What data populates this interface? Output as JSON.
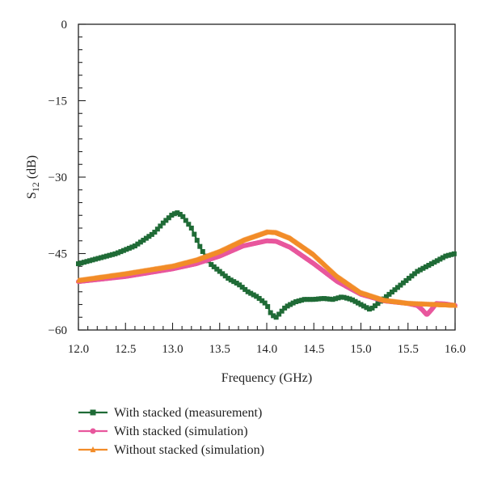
{
  "chart_data": {
    "type": "line",
    "xlabel": "Frequency (GHz)",
    "ylabel": {
      "main": "S",
      "sub": "12",
      "unit": " (dB)"
    },
    "xlim": [
      12.0,
      16.0
    ],
    "ylim": [
      -60,
      0
    ],
    "x_ticks": [
      12.0,
      12.5,
      13.0,
      13.5,
      14.0,
      14.5,
      15.0,
      15.5,
      16.0
    ],
    "x_tick_labels": [
      "12.0",
      "12.5",
      "13.0",
      "13.5",
      "14.0",
      "14.5",
      "15.0",
      "15.5",
      "16.0"
    ],
    "y_ticks": [
      0,
      -15,
      -30,
      -45,
      -60
    ],
    "y_tick_labels": [
      "0",
      "−15",
      "−30",
      "−45",
      "−60"
    ],
    "grid": false,
    "legend_position": "bottom",
    "series": [
      {
        "name": "With stacked (measurement)",
        "color": "#1f6b36",
        "marker": "square",
        "x": [
          12.0,
          12.2,
          12.4,
          12.6,
          12.8,
          12.9,
          13.0,
          13.05,
          13.1,
          13.2,
          13.3,
          13.4,
          13.5,
          13.6,
          13.7,
          13.8,
          13.9,
          14.0,
          14.05,
          14.1,
          14.15,
          14.2,
          14.3,
          14.4,
          14.5,
          14.6,
          14.7,
          14.8,
          14.9,
          15.0,
          15.1,
          15.2,
          15.3,
          15.4,
          15.5,
          15.6,
          15.7,
          15.8,
          15.9,
          16.0
        ],
        "y": [
          -47.0,
          -46.0,
          -45.0,
          -43.5,
          -41.0,
          -39.0,
          -37.3,
          -37.0,
          -37.5,
          -40.0,
          -44.0,
          -47.0,
          -48.5,
          -50.0,
          -51.0,
          -52.5,
          -53.5,
          -55.0,
          -57.0,
          -57.5,
          -56.5,
          -55.5,
          -54.5,
          -54.0,
          -54.0,
          -53.8,
          -54.0,
          -53.5,
          -54.0,
          -55.0,
          -56.0,
          -54.5,
          -53.0,
          -51.5,
          -50.0,
          -48.5,
          -47.5,
          -46.5,
          -45.5,
          -45.0
        ]
      },
      {
        "name": "With stacked (simulation)",
        "color": "#e8579d",
        "marker": "circle",
        "x": [
          12.0,
          12.5,
          13.0,
          13.25,
          13.5,
          13.75,
          14.0,
          14.1,
          14.25,
          14.5,
          14.75,
          15.0,
          15.25,
          15.5,
          15.6,
          15.65,
          15.7,
          15.75,
          15.8,
          15.9,
          16.0
        ],
        "y": [
          -50.5,
          -49.5,
          -48.0,
          -47.0,
          -45.5,
          -43.5,
          -42.5,
          -42.6,
          -43.8,
          -47.0,
          -50.5,
          -53.0,
          -54.3,
          -54.8,
          -55.2,
          -56.0,
          -57.0,
          -56.0,
          -54.8,
          -54.9,
          -55.2
        ]
      },
      {
        "name": "Without stacked (simulation)",
        "color": "#f28c28",
        "marker": "triangle",
        "x": [
          12.0,
          12.5,
          13.0,
          13.25,
          13.5,
          13.75,
          14.0,
          14.1,
          14.25,
          14.5,
          14.75,
          15.0,
          15.25,
          15.5,
          15.75,
          16.0
        ],
        "y": [
          -50.3,
          -49.0,
          -47.5,
          -46.3,
          -44.6,
          -42.4,
          -40.8,
          -40.9,
          -42.0,
          -45.2,
          -49.5,
          -52.7,
          -54.2,
          -54.8,
          -55.0,
          -55.2
        ]
      }
    ]
  }
}
